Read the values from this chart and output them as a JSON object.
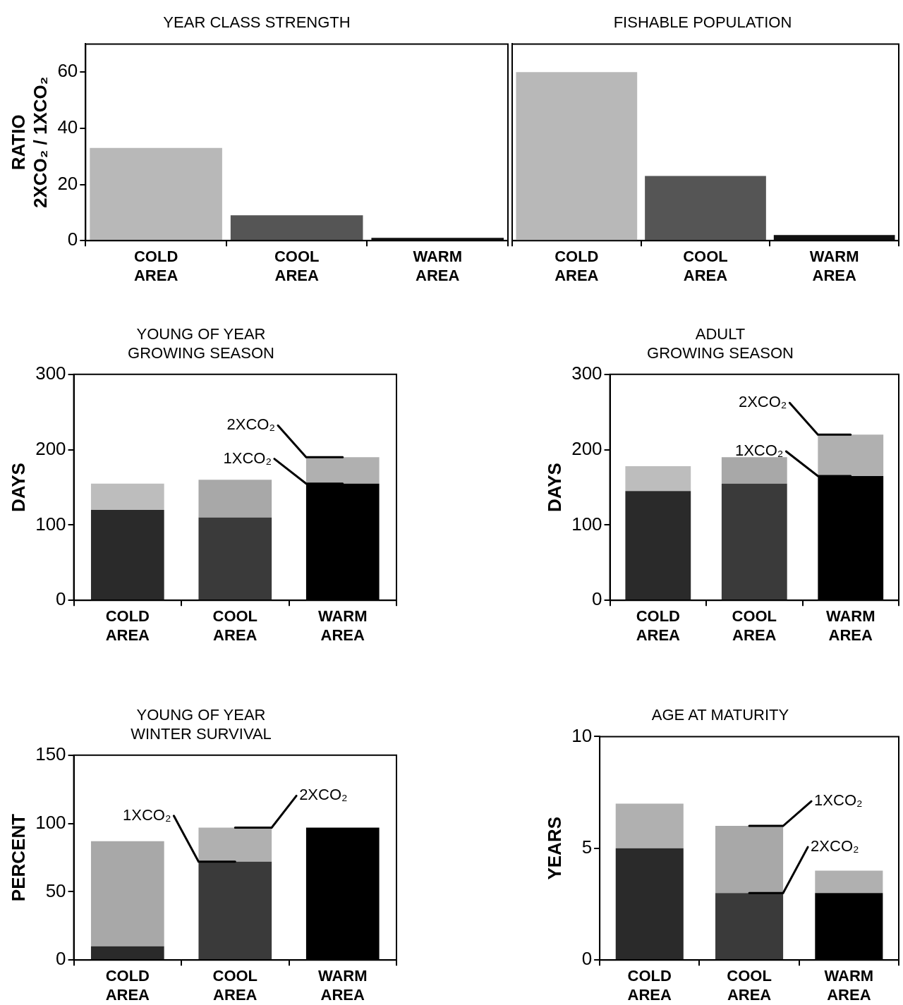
{
  "chart_data": [
    {
      "type": "bar",
      "title": "YEAR CLASS STRENGTH",
      "ylabel": "RATIO\n2XCO₂ / 1XCO₂",
      "categories": [
        "COLD AREA",
        "COOL AREA",
        "WARM AREA"
      ],
      "values": [
        33,
        9,
        1
      ],
      "colors": [
        "#b8b8b8",
        "#555555",
        "#111111"
      ],
      "ylim": [
        0,
        70
      ],
      "yticks": [
        0,
        20,
        40,
        60
      ]
    },
    {
      "type": "bar",
      "title": "FISHABLE POPULATION",
      "categories": [
        "COLD AREA",
        "COOL AREA",
        "WARM AREA"
      ],
      "values": [
        60,
        23,
        2
      ],
      "colors": [
        "#b8b8b8",
        "#555555",
        "#111111"
      ],
      "ylim": [
        0,
        70
      ],
      "tick_labels": "x"
    },
    {
      "type": "bar",
      "stacked": true,
      "title": "YOUNG OF YEAR\nGROWING SEASON",
      "ylabel": "DAYS",
      "categories": [
        "COLD AREA",
        "COOL AREA",
        "WARM AREA"
      ],
      "series": [
        {
          "colors": [
            "#2a2a2a",
            "#3a3a3a",
            "#000000"
          ],
          "values": [
            120,
            110,
            155
          ]
        },
        {
          "colors": [
            "#bdbdbd",
            "#a8a8a8",
            "#b0b0b0"
          ],
          "values": [
            35,
            50,
            35
          ]
        }
      ],
      "ylim": [
        0,
        300
      ],
      "yticks": [
        0,
        100,
        200,
        300
      ],
      "annotations": [
        {
          "text": "2XCO₂",
          "x": "WARM AREA",
          "y": 190
        },
        {
          "text": "1XCO₂",
          "x": "WARM AREA",
          "y": 155
        }
      ]
    },
    {
      "type": "bar",
      "stacked": true,
      "title": "ADULT\nGROWING SEASON",
      "ylabel": "DAYS",
      "categories": [
        "COLD AREA",
        "COOL AREA",
        "WARM AREA"
      ],
      "series": [
        {
          "colors": [
            "#2a2a2a",
            "#3a3a3a",
            "#000000"
          ],
          "values": [
            145,
            155,
            165
          ]
        },
        {
          "colors": [
            "#bdbdbd",
            "#a8a8a8",
            "#b0b0b0"
          ],
          "values": [
            33,
            35,
            55
          ]
        }
      ],
      "ylim": [
        0,
        300
      ],
      "yticks": [
        0,
        100,
        200,
        300
      ],
      "annotations": [
        {
          "text": "2XCO₂",
          "x": "WARM AREA",
          "y": 220
        },
        {
          "text": "1XCO₂",
          "x": "WARM AREA",
          "y": 165
        }
      ]
    },
    {
      "type": "bar",
      "stacked": true,
      "title": "YOUNG OF YEAR\nWINTER SURVIVAL",
      "ylabel": "PERCENT",
      "categories": [
        "COLD AREA",
        "COOL AREA",
        "WARM AREA"
      ],
      "series": [
        {
          "colors": [
            "#2a2a2a",
            "#3a3a3a",
            "#000000"
          ],
          "values": [
            10,
            72,
            97
          ]
        },
        {
          "colors": [
            "#a8a8a8",
            "#b0b0b0",
            "#b0b0b0"
          ],
          "values": [
            77,
            25,
            0
          ]
        }
      ],
      "ylim": [
        0,
        150
      ],
      "yticks": [
        0,
        50,
        100,
        150
      ],
      "annotations": [
        {
          "text": "1XCO₂",
          "x": "COOL AREA",
          "y": 72
        },
        {
          "text": "2XCO₂",
          "x": "COOL AREA",
          "y": 97
        }
      ]
    },
    {
      "type": "bar",
      "stacked": true,
      "title": "AGE AT MATURITY",
      "ylabel": "YEARS",
      "categories": [
        "COLD AREA",
        "COOL AREA",
        "WARM AREA"
      ],
      "series": [
        {
          "colors": [
            "#2a2a2a",
            "#3a3a3a",
            "#000000"
          ],
          "values": [
            5,
            3,
            3
          ]
        },
        {
          "colors": [
            "#b0b0b0",
            "#a8a8a8",
            "#b0b0b0"
          ],
          "values": [
            2,
            3,
            1
          ]
        }
      ],
      "ylim": [
        0,
        10
      ],
      "yticks": [
        0,
        5,
        10
      ],
      "annotations": [
        {
          "text": "1XCO₂",
          "x": "COOL AREA",
          "y": 6
        },
        {
          "text": "2XCO₂",
          "x": "COOL AREA",
          "y": 3
        }
      ]
    }
  ]
}
